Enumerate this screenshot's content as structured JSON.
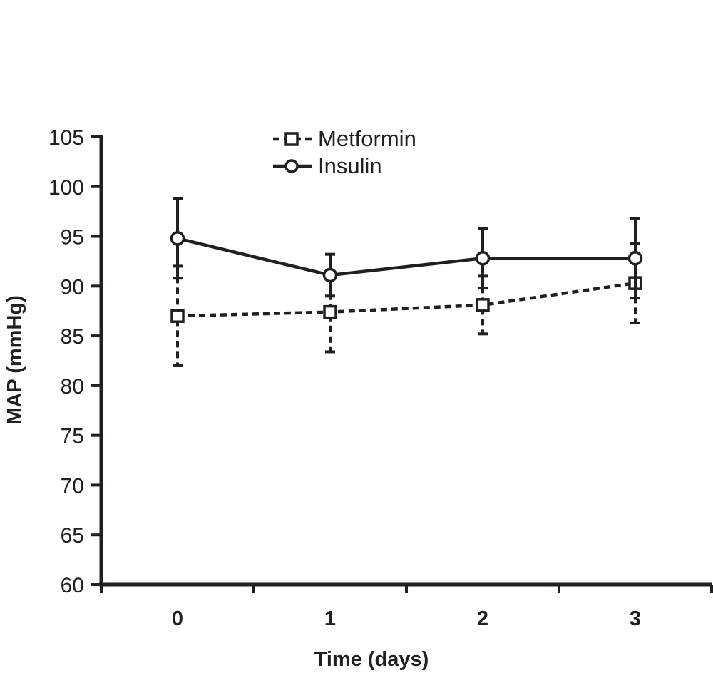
{
  "chart_data": {
    "type": "line",
    "title": "",
    "xlabel": "Time (days)",
    "ylabel": "MAP (mmHg)",
    "x": [
      0,
      1,
      2,
      3
    ],
    "x_tick_labels": [
      "0",
      "1",
      "2",
      "3"
    ],
    "xlim": [
      -0.5,
      3.5
    ],
    "ylim": [
      60,
      105
    ],
    "y_ticks": [
      60,
      65,
      70,
      75,
      80,
      85,
      90,
      95,
      100,
      105
    ],
    "y_tick_labels": [
      "60",
      "65",
      "70",
      "75",
      "80",
      "85",
      "90",
      "95",
      "100",
      "105"
    ],
    "grid": false,
    "legend_position": "top-center",
    "series": [
      {
        "name": "Metformin",
        "marker": "square",
        "line_style": "dashed",
        "color": "#231f20",
        "values": [
          87.0,
          87.4,
          88.1,
          90.3
        ],
        "error": [
          5.0,
          4.0,
          2.9,
          4.0
        ]
      },
      {
        "name": "Insulin",
        "marker": "circle",
        "line_style": "solid",
        "color": "#231f20",
        "values": [
          94.8,
          91.1,
          92.8,
          92.8
        ],
        "error": [
          4.0,
          2.1,
          3.0,
          4.0
        ]
      }
    ]
  }
}
